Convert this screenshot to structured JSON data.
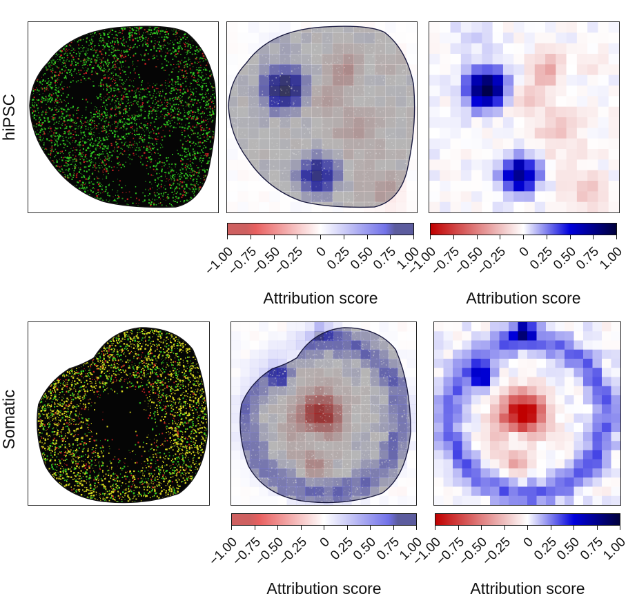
{
  "rows": [
    {
      "label": "hiPSC"
    },
    {
      "label": "Somatic"
    }
  ],
  "colorbars": [
    {
      "title": "Attribution score",
      "ticks": [
        "−1.00",
        "−0.75",
        "−0.50",
        "−0.25",
        "0",
        "0.25",
        "0.50",
        "0.75",
        "1.00"
      ],
      "style": "overlay"
    },
    {
      "title": "Attribution score",
      "ticks": [
        "−1.00",
        "−0.75",
        "−0.50",
        "−0.25",
        "0",
        "0.25",
        "0.50",
        "0.75",
        "1.00"
      ],
      "style": "full"
    },
    {
      "title": "Attribution score",
      "ticks": [
        "−1.00",
        "−0.75",
        "−0.50",
        "−0.25",
        "0",
        "0.25",
        "0.50",
        "0.75",
        "1.00"
      ],
      "style": "overlay"
    },
    {
      "title": "Attribution score",
      "ticks": [
        "−1.00",
        "−0.75",
        "−0.50",
        "−0.25",
        "0",
        "0.25",
        "0.50",
        "0.75",
        "1.00"
      ],
      "style": "full"
    }
  ],
  "colors": {
    "negative_full": "#c00000",
    "negative_overlay": "#c86464",
    "positive_full": "#00003c",
    "positive_overlay": "#5a5a8c",
    "nucleus_overlay": "#6e6e6e",
    "channel_green": "#33cc22",
    "channel_red": "#cc2222",
    "channel_yellow": "#d8d820"
  },
  "scale": {
    "min": -1.0,
    "max": 1.0
  }
}
